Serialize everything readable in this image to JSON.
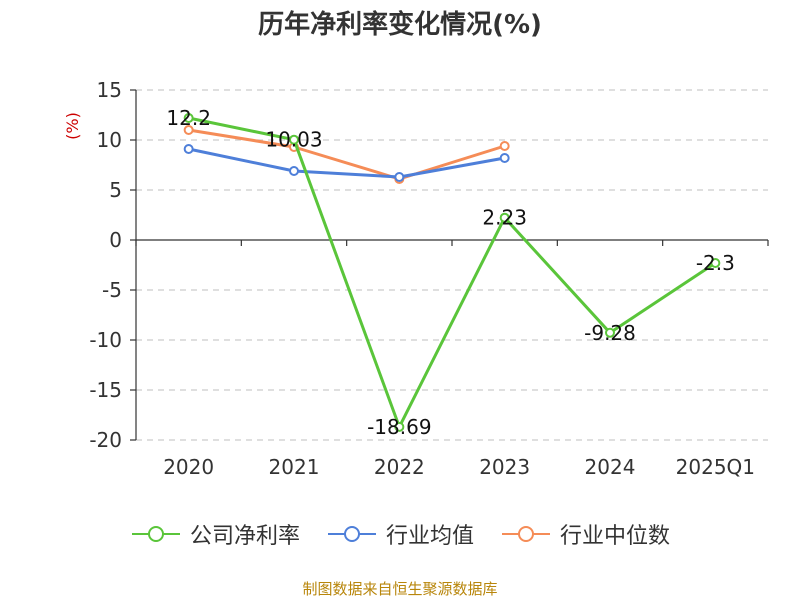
{
  "chart_data": {
    "type": "line",
    "title": "历年净利率变化情况(%)",
    "ylabel": "(%)",
    "xlabel": "",
    "ylim": [
      -20,
      15
    ],
    "yticks": [
      15,
      10,
      5,
      0,
      -5,
      -10,
      -15,
      -20
    ],
    "categories": [
      "2020",
      "2021",
      "2022",
      "2023",
      "2024",
      "2025Q1"
    ],
    "grid": true,
    "legend_position": "bottom",
    "series": [
      {
        "name": "公司净利率",
        "color": "#5ac53a",
        "values": [
          12.2,
          10.03,
          -18.69,
          2.23,
          -9.28,
          -2.3
        ],
        "labels": [
          "12.2",
          "10.03",
          "-18.69",
          "2.23",
          "-9.28",
          "-2.3"
        ]
      },
      {
        "name": "行业均值",
        "color": "#4e7fd9",
        "values": [
          9.1,
          6.9,
          6.3,
          8.2,
          null,
          null
        ],
        "labels": []
      },
      {
        "name": "行业中位数",
        "color": "#f58c57",
        "values": [
          11.0,
          9.3,
          6.1,
          9.4,
          null,
          null
        ],
        "labels": []
      }
    ]
  },
  "source": "制图数据来自恒生聚源数据库"
}
